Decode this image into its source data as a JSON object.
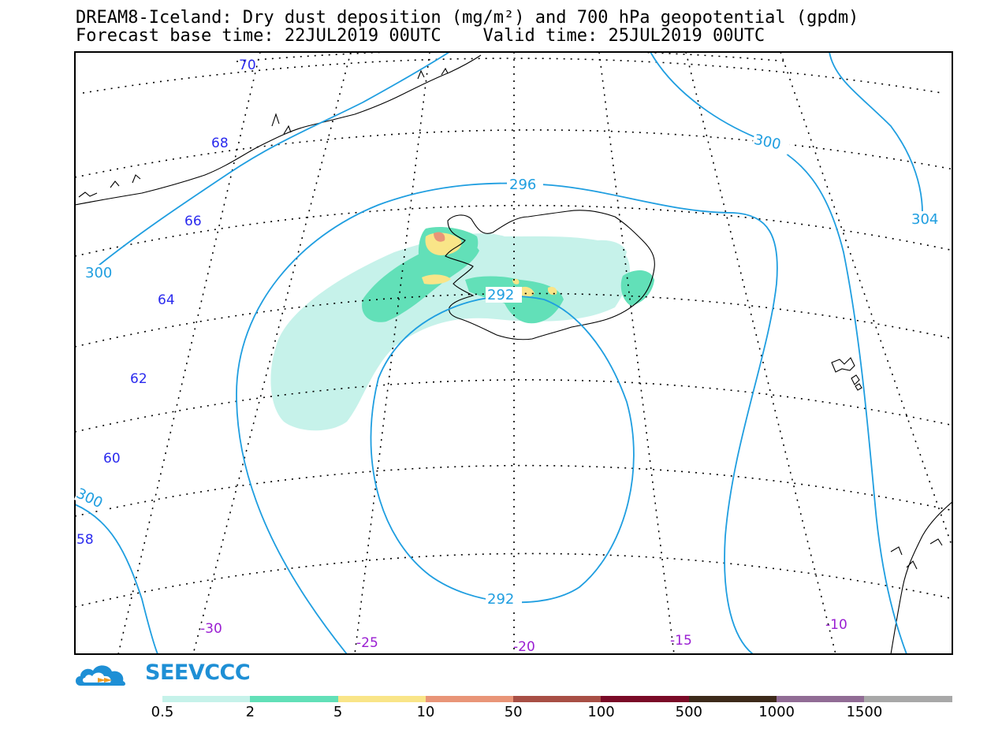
{
  "title_line1": "DREAM8-Iceland: Dry dust deposition (mg/m²) and 700 hPa geopotential (gpdm)",
  "title_line2": "Forecast base time: 22JUL2019 00UTC    Valid time: 25JUL2019 00UTC",
  "logo_text": "SEEVCCC",
  "latitude_labels": [
    "70",
    "68",
    "66",
    "64",
    "62",
    "60",
    "58"
  ],
  "longitude_labels": [
    "-30",
    "-25",
    "-20",
    "-15",
    "-10"
  ],
  "contour_labels": [
    "296",
    "300",
    "300",
    "300",
    "304",
    "292",
    "292"
  ],
  "legend": {
    "labels": [
      "0.5",
      "2",
      "5",
      "10",
      "50",
      "100",
      "500",
      "1000",
      "1500"
    ],
    "colors": [
      "#c6f2ea",
      "#62e0b8",
      "#f9e588",
      "#e99578",
      "#a84f45",
      "#7a0a27",
      "#3d2a1a",
      "#916c95",
      "#a8a8a8"
    ]
  },
  "colors": {
    "geopotential_contour": "#1f9ee0",
    "latitude_label": "#2a2aee",
    "longitude_label": "#9a1ed2",
    "coastline": "#000000"
  }
}
